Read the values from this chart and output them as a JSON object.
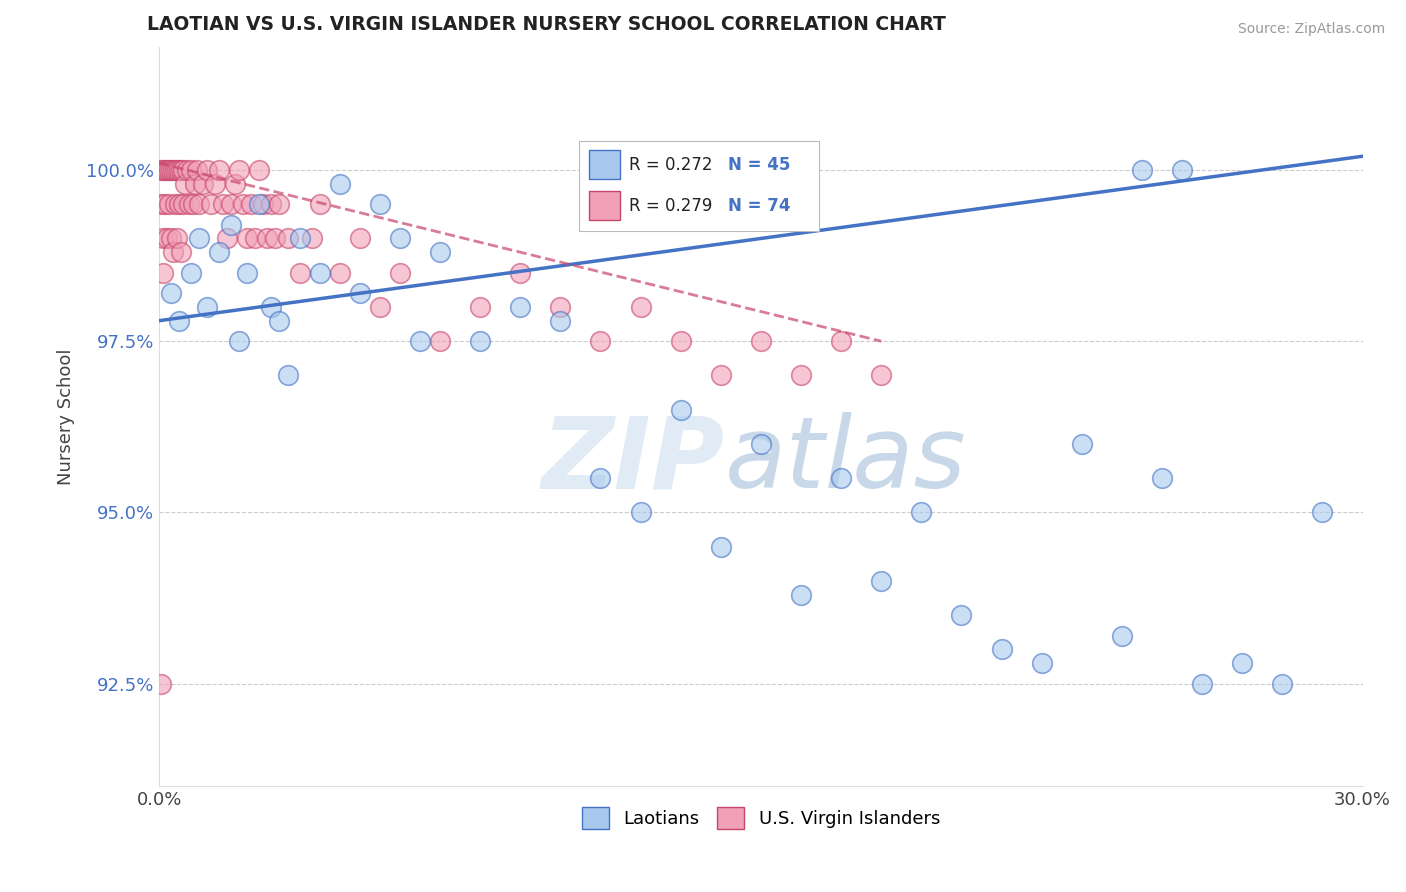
{
  "title": "LAOTIAN VS U.S. VIRGIN ISLANDER NURSERY SCHOOL CORRELATION CHART",
  "source": "Source: ZipAtlas.com",
  "ylabel": "Nursery School",
  "xlim": [
    0.0,
    30.0
  ],
  "ylim": [
    91.0,
    101.8
  ],
  "xticks": [
    0.0,
    30.0
  ],
  "xtick_labels": [
    "0.0%",
    "30.0%"
  ],
  "yticks": [
    92.5,
    95.0,
    97.5,
    100.0
  ],
  "ytick_labels": [
    "92.5%",
    "95.0%",
    "97.5%",
    "100.0%"
  ],
  "blue_color": "#A8C8EE",
  "pink_color": "#F0A0B8",
  "blue_line_color": "#4472C4",
  "pink_line_color": "#C8446A",
  "legend_blue_r": "0.272",
  "legend_blue_n": "45",
  "legend_pink_r": "0.279",
  "legend_pink_n": "74",
  "laotians_label": "Laotians",
  "virgin_islanders_label": "U.S. Virgin Islanders",
  "background_color": "#FFFFFF",
  "blue_scatter_x": [
    0.3,
    0.5,
    0.8,
    1.0,
    1.2,
    1.5,
    1.8,
    2.0,
    2.2,
    2.5,
    2.8,
    3.0,
    3.5,
    4.0,
    4.5,
    5.0,
    5.5,
    6.0,
    7.0,
    8.0,
    9.0,
    10.0,
    11.0,
    12.0,
    13.0,
    14.0,
    15.0,
    16.0,
    17.0,
    18.0,
    19.0,
    20.0,
    21.0,
    22.0,
    23.0,
    24.0,
    25.0,
    26.0,
    27.0,
    28.0,
    29.0,
    24.5,
    25.5,
    3.2,
    6.5
  ],
  "blue_scatter_y": [
    98.2,
    97.8,
    98.5,
    99.0,
    98.0,
    98.8,
    99.2,
    97.5,
    98.5,
    99.5,
    98.0,
    97.8,
    99.0,
    98.5,
    99.8,
    98.2,
    99.5,
    99.0,
    98.8,
    97.5,
    98.0,
    97.8,
    95.5,
    95.0,
    96.5,
    94.5,
    96.0,
    93.8,
    95.5,
    94.0,
    95.0,
    93.5,
    93.0,
    92.8,
    96.0,
    93.2,
    95.5,
    92.5,
    92.8,
    92.5,
    95.0,
    100.0,
    100.0,
    97.0,
    97.5
  ],
  "pink_scatter_x": [
    0.05,
    0.05,
    0.1,
    0.1,
    0.1,
    0.15,
    0.15,
    0.2,
    0.2,
    0.25,
    0.25,
    0.3,
    0.3,
    0.35,
    0.35,
    0.4,
    0.4,
    0.45,
    0.45,
    0.5,
    0.5,
    0.55,
    0.55,
    0.6,
    0.6,
    0.65,
    0.7,
    0.75,
    0.8,
    0.85,
    0.9,
    0.95,
    1.0,
    1.1,
    1.2,
    1.3,
    1.4,
    1.5,
    1.6,
    1.7,
    1.8,
    1.9,
    2.0,
    2.1,
    2.2,
    2.3,
    2.4,
    2.5,
    2.6,
    2.7,
    2.8,
    2.9,
    3.0,
    3.2,
    3.5,
    3.8,
    4.0,
    4.5,
    5.0,
    5.5,
    6.0,
    7.0,
    8.0,
    9.0,
    10.0,
    11.0,
    12.0,
    13.0,
    14.0,
    15.0,
    16.0,
    17.0,
    18.0,
    0.05
  ],
  "pink_scatter_y": [
    100.0,
    99.5,
    100.0,
    99.0,
    98.5,
    100.0,
    99.5,
    100.0,
    99.0,
    100.0,
    99.5,
    100.0,
    99.0,
    100.0,
    98.8,
    100.0,
    99.5,
    100.0,
    99.0,
    100.0,
    99.5,
    100.0,
    98.8,
    100.0,
    99.5,
    99.8,
    100.0,
    99.5,
    100.0,
    99.5,
    99.8,
    100.0,
    99.5,
    99.8,
    100.0,
    99.5,
    99.8,
    100.0,
    99.5,
    99.0,
    99.5,
    99.8,
    100.0,
    99.5,
    99.0,
    99.5,
    99.0,
    100.0,
    99.5,
    99.0,
    99.5,
    99.0,
    99.5,
    99.0,
    98.5,
    99.0,
    99.5,
    98.5,
    99.0,
    98.0,
    98.5,
    97.5,
    98.0,
    98.5,
    98.0,
    97.5,
    98.0,
    97.5,
    97.0,
    97.5,
    97.0,
    97.5,
    97.0,
    92.5
  ],
  "blue_trendline_x": [
    0.0,
    30.0
  ],
  "blue_trendline_y": [
    97.8,
    100.2
  ],
  "pink_trendline_x": [
    0.0,
    18.0
  ],
  "pink_trendline_y": [
    100.1,
    97.5
  ],
  "watermark_zip": "ZIP",
  "watermark_atlas": "atlas"
}
